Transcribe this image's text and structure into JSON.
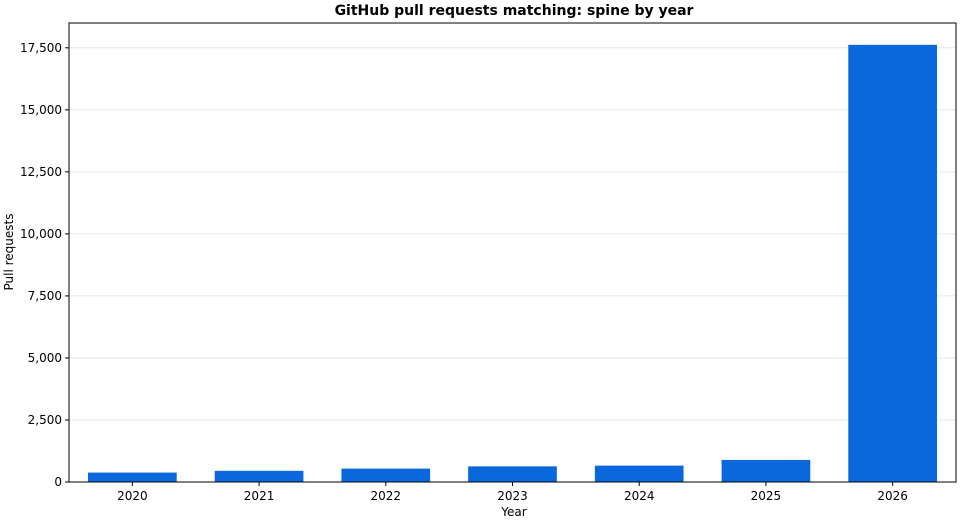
{
  "chart_data": {
    "type": "bar",
    "title": "GitHub pull requests matching: spine by year",
    "xlabel": "Year",
    "ylabel": "Pull requests",
    "categories": [
      "2020",
      "2021",
      "2022",
      "2023",
      "2024",
      "2025",
      "2026"
    ],
    "values": [
      380,
      450,
      540,
      630,
      660,
      890,
      17620
    ],
    "ylim": [
      0,
      18500
    ],
    "yticks": [
      0,
      2500,
      5000,
      7500,
      10000,
      12500,
      15000,
      17500
    ],
    "ytick_labels": [
      "0",
      "2,500",
      "5,000",
      "7,500",
      "10,000",
      "12,500",
      "15,000",
      "17,500"
    ],
    "grid": "horizontal",
    "bar_color": "#0b67dc",
    "grid_color": "#e6e6e6"
  }
}
